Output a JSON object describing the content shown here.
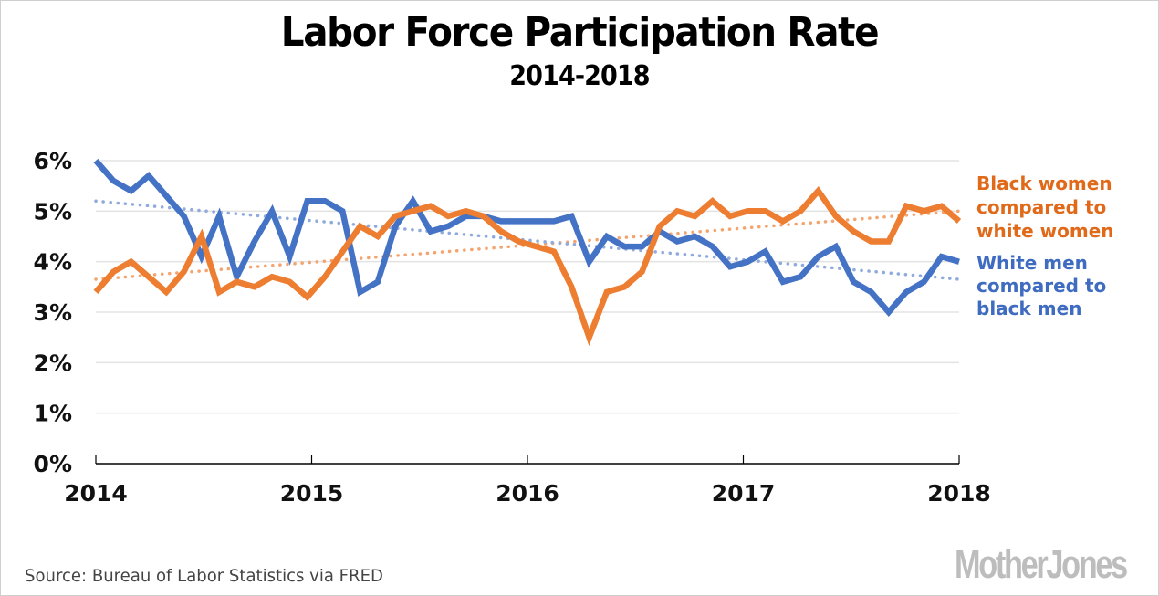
{
  "chart_data": {
    "type": "line",
    "title": "Labor Force Participation Rate",
    "subtitle": "2014-2018",
    "xlabel": "",
    "ylabel": "",
    "x_tick_labels": [
      "2014",
      "2015",
      "2016",
      "2017",
      "2018"
    ],
    "y_tick_labels": [
      "0%",
      "1%",
      "2%",
      "3%",
      "4%",
      "5%",
      "6%"
    ],
    "ylim": [
      0,
      6
    ],
    "xlim": [
      2014,
      2018
    ],
    "grid": "horizontal",
    "legend_placement": "right",
    "x_step": "monthly",
    "series": [
      {
        "name": "Black women compared to white women",
        "color": "#ED7D31",
        "trend_color": "#F4A46E",
        "trendline": {
          "start": 3.65,
          "end": 5.0
        },
        "values": [
          3.4,
          3.8,
          4.0,
          3.7,
          3.4,
          3.8,
          4.5,
          3.4,
          3.6,
          3.5,
          3.7,
          3.6,
          3.3,
          3.7,
          4.2,
          4.7,
          4.5,
          4.9,
          5.0,
          5.1,
          4.9,
          5.0,
          4.9,
          4.6,
          4.4,
          4.3,
          4.2,
          3.5,
          2.5,
          3.4,
          3.5,
          3.8,
          4.7,
          5.0,
          4.9,
          5.2,
          4.9,
          5.0,
          5.0,
          4.8,
          5.0,
          5.4,
          4.9,
          4.6,
          4.4,
          4.4,
          5.1,
          5.0,
          5.1,
          4.8
        ]
      },
      {
        "name": "White men compared to black men",
        "color": "#4472C4",
        "trend_color": "#8FAADC",
        "trendline": {
          "start": 5.2,
          "end": 3.65
        },
        "values": [
          6.0,
          5.6,
          5.4,
          5.7,
          5.3,
          4.9,
          4.1,
          4.9,
          3.7,
          4.4,
          5.0,
          4.1,
          5.2,
          5.2,
          5.0,
          3.4,
          3.6,
          4.7,
          5.2,
          4.6,
          4.7,
          4.9,
          4.9,
          4.8,
          4.8,
          4.8,
          4.8,
          4.9,
          4.0,
          4.5,
          4.3,
          4.3,
          4.6,
          4.4,
          4.5,
          4.3,
          3.9,
          4.0,
          4.2,
          3.6,
          3.7,
          4.1,
          4.3,
          3.6,
          3.4,
          3.0,
          3.4,
          3.6,
          4.1,
          4.0
        ]
      }
    ]
  },
  "legend": {
    "women_lines": [
      "Black women",
      "compared to",
      "white women"
    ],
    "men_lines": [
      "White men",
      "compared to",
      "black men"
    ]
  },
  "footer": {
    "source": "Source: Bureau of Labor Statistics via FRED",
    "logo": "MotherJones"
  }
}
